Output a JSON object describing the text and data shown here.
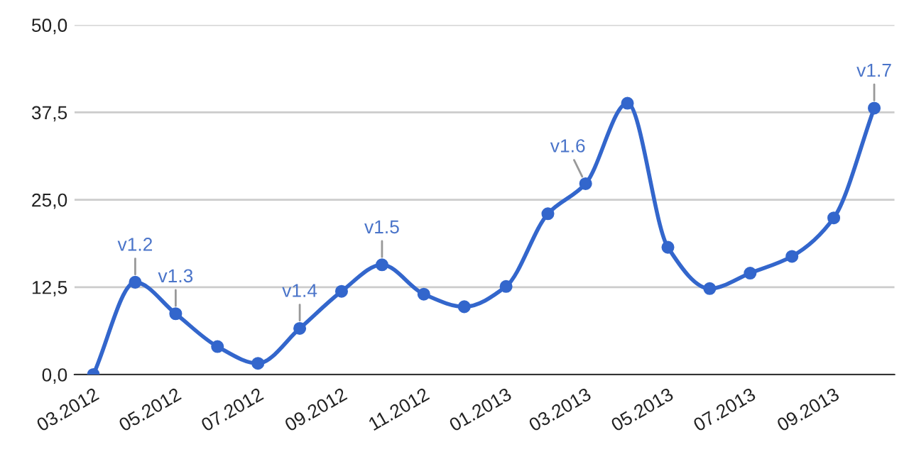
{
  "chart_data": {
    "type": "line",
    "x": [
      "2012-03",
      "2012-04",
      "2012-05",
      "2012-06",
      "2012-07",
      "2012-08",
      "2012-09",
      "2012-10",
      "2012-11",
      "2012-12",
      "2013-01",
      "2013-02",
      "2013-03",
      "2013-04",
      "2013-05",
      "2013-06",
      "2013-07",
      "2013-08",
      "2013-09",
      "2013-10"
    ],
    "series": [
      {
        "color": "#3366cc",
        "values": [
          0,
          13.2,
          8.7,
          4.0,
          1.6,
          6.6,
          11.9,
          15.7,
          11.5,
          9.7,
          12.6,
          23.0,
          27.3,
          38.8,
          18.2,
          12.3,
          14.5,
          16.9,
          22.4,
          38.1
        ]
      }
    ],
    "xlim": [
      "2012-02-16",
      "2013-10-16"
    ],
    "xticks": [
      {
        "value": "2012-03",
        "label": "03.2012"
      },
      {
        "value": "2012-05",
        "label": "05.2012"
      },
      {
        "value": "2012-07",
        "label": "07.2012"
      },
      {
        "value": "2012-09",
        "label": "09.2012"
      },
      {
        "value": "2012-11",
        "label": "11.2012"
      },
      {
        "value": "2013-01",
        "label": "01.2013"
      },
      {
        "value": "2013-03",
        "label": "03.2013"
      },
      {
        "value": "2013-05",
        "label": "05.2013"
      },
      {
        "value": "2013-07",
        "label": "07.2013"
      },
      {
        "value": "2013-09",
        "label": "09.2013"
      }
    ],
    "ylim": [
      0,
      50
    ],
    "yticks": [
      {
        "value": 0,
        "label": "0,0"
      },
      {
        "value": 12.5,
        "label": "12,5"
      },
      {
        "value": 25,
        "label": "25,0"
      },
      {
        "value": 37.5,
        "label": "37,5"
      },
      {
        "value": 50,
        "label": "50,0"
      }
    ],
    "grid": "y",
    "marker": "circle",
    "line_style": "solid",
    "legend": false,
    "annotations": [
      {
        "text": "v1.2",
        "x": "2012-04",
        "y": 13.2
      },
      {
        "text": "v1.3",
        "x": "2012-05",
        "y": 8.7
      },
      {
        "text": "v1.4",
        "x": "2012-08",
        "y": 6.6
      },
      {
        "text": "v1.5",
        "x": "2012-10",
        "y": 15.7
      },
      {
        "text": "v1.6",
        "x": "2013-03",
        "y": 27.3
      },
      {
        "text": "v1.7",
        "x": "2013-10",
        "y": 38.1
      }
    ]
  }
}
